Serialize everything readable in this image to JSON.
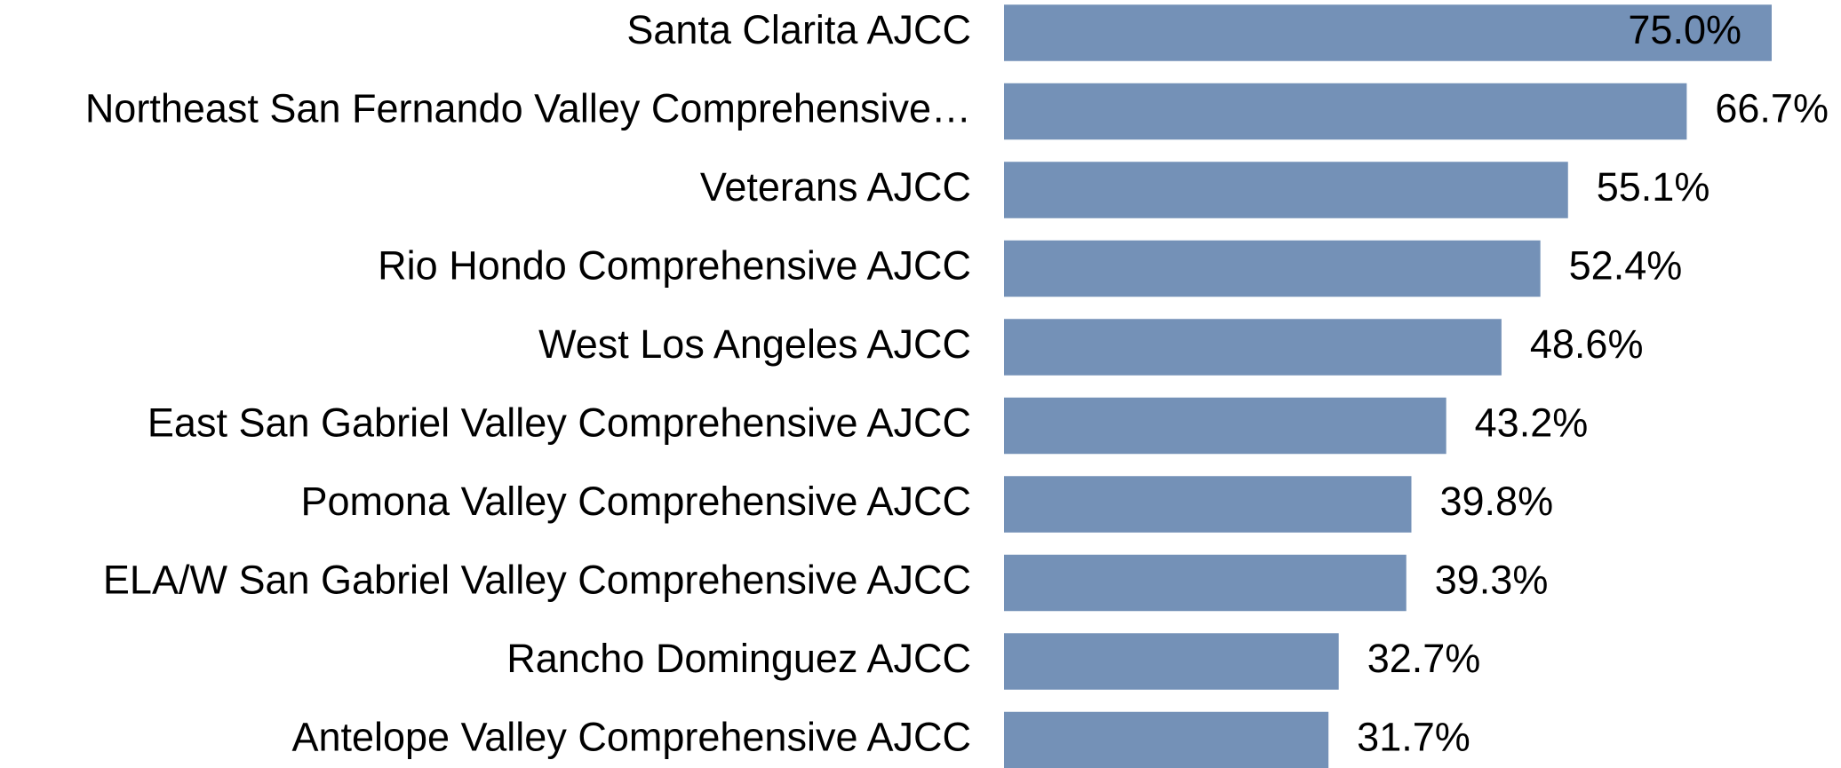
{
  "chart_data": {
    "type": "bar",
    "orientation": "horizontal",
    "categories": [
      "Santa Clarita AJCC",
      "Northeast San Fernando Valley Comprehensive…",
      "Veterans AJCC",
      "Rio Hondo Comprehensive AJCC",
      "West Los Angeles AJCC",
      "East San Gabriel Valley Comprehensive AJCC",
      "Pomona Valley Comprehensive AJCC",
      "ELA/W San Gabriel Valley Comprehensive AJCC",
      "Rancho Dominguez AJCC",
      "Antelope Valley Comprehensive AJCC"
    ],
    "values": [
      75.0,
      66.7,
      55.1,
      52.4,
      48.6,
      43.2,
      39.8,
      39.3,
      32.7,
      31.7
    ],
    "value_labels": [
      "75.0%",
      "66.7%",
      "55.1%",
      "52.4%",
      "48.6%",
      "43.2%",
      "39.8%",
      "39.3%",
      "32.7%",
      "31.7%"
    ],
    "color": "#7491b7",
    "xlim": [
      0,
      75
    ]
  }
}
